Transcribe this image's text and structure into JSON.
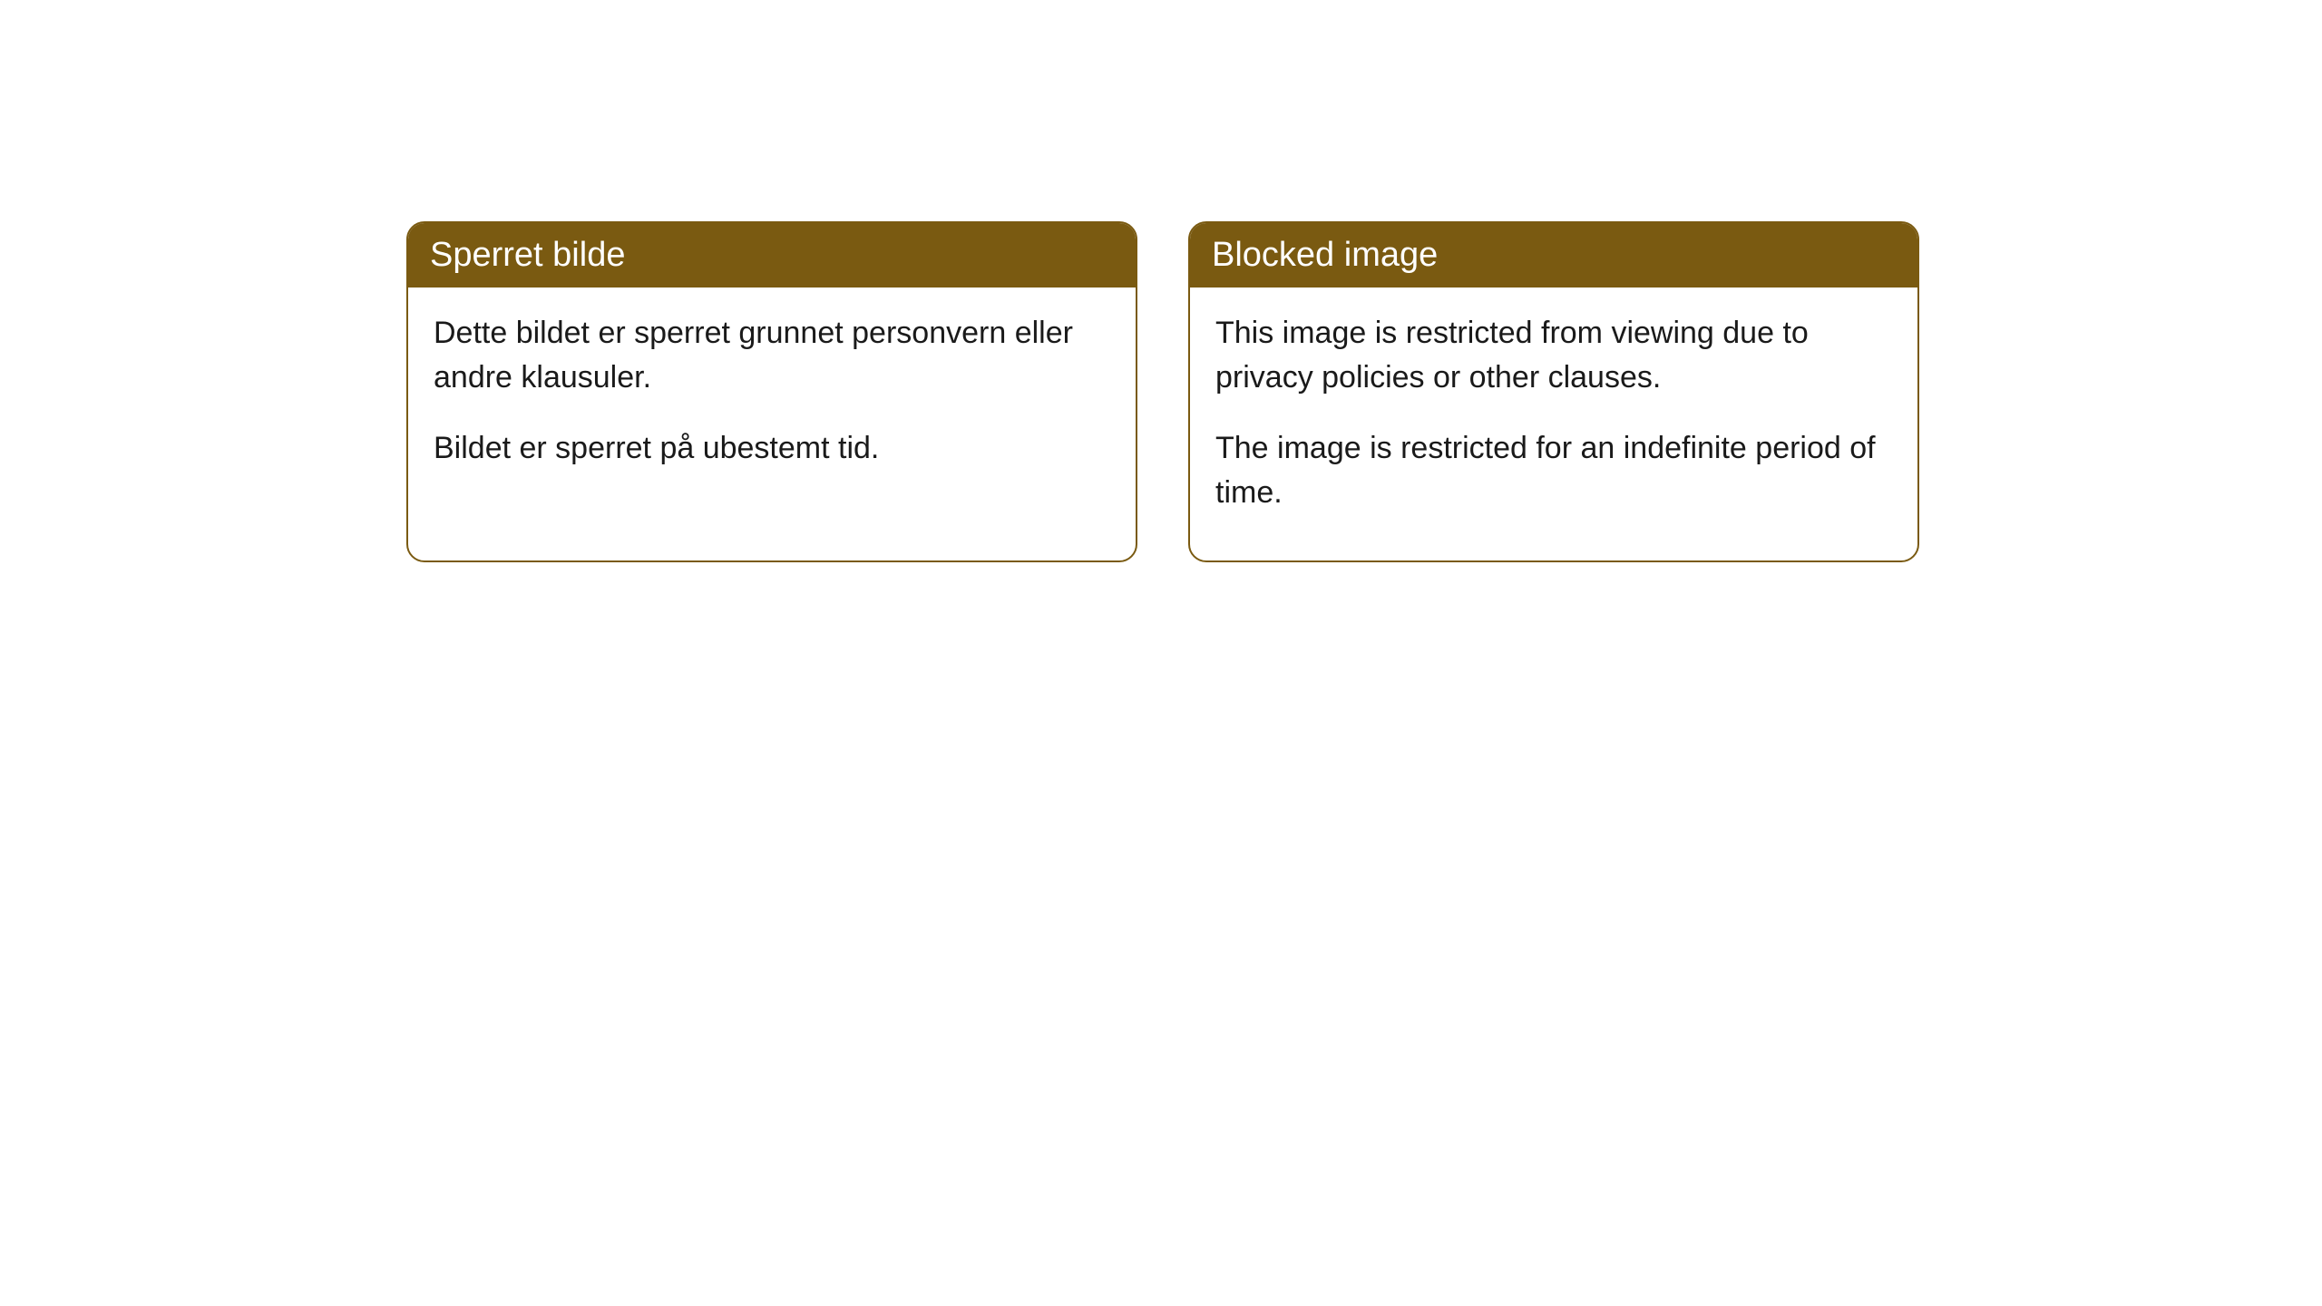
{
  "cards": {
    "left": {
      "title": "Sperret bilde",
      "paragraph1": "Dette bildet er sperret grunnet personvern eller andre klausuler.",
      "paragraph2": "Bildet er sperret på ubestemt tid."
    },
    "right": {
      "title": "Blocked image",
      "paragraph1": "This image is restricted from viewing due to privacy policies or other clauses.",
      "paragraph2": "The image is restricted for an indefinite period of time."
    }
  },
  "styling": {
    "header_bg_color": "#7a5a11",
    "header_text_color": "#ffffff",
    "border_color": "#7a5a11",
    "body_text_color": "#1a1a1a",
    "card_bg_color": "#ffffff",
    "border_radius": 20,
    "header_fontsize": 38,
    "body_fontsize": 34
  }
}
